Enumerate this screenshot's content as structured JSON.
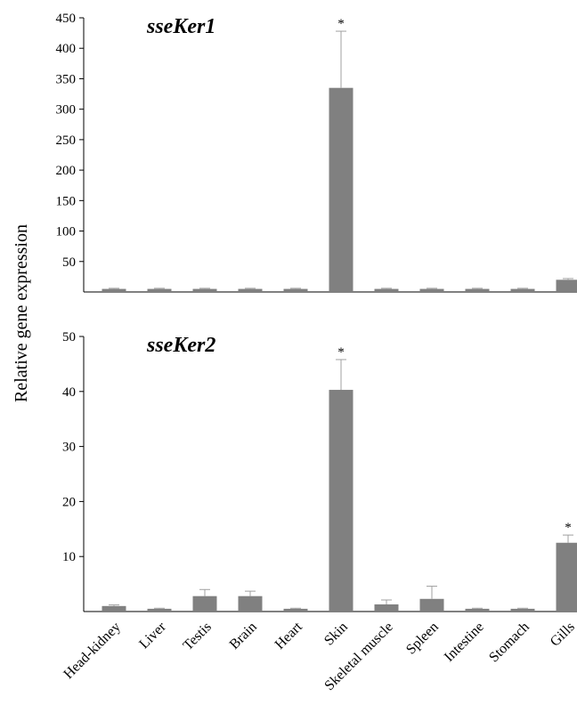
{
  "chart_data": {
    "type": "bar",
    "ylabel": "Relative gene expression",
    "categories": [
      "Head-kidney",
      "Liver",
      "Testis",
      "Brain",
      "Heart",
      "Skin",
      "Skeletal muscle",
      "Spleen",
      "Intestine",
      "Stomach",
      "Gills"
    ],
    "bar_color": "#808080",
    "panels": [
      {
        "title": "sseKer1",
        "ylim": [
          0,
          450
        ],
        "yticks": [
          50,
          100,
          150,
          200,
          250,
          300,
          350,
          400,
          450
        ],
        "values": [
          5,
          5,
          5,
          5,
          5,
          335,
          5,
          5,
          5,
          5,
          20
        ],
        "errors": [
          1,
          1,
          1,
          1,
          1,
          93,
          1,
          1,
          1,
          1,
          2
        ],
        "significance": [
          "",
          "",
          "",
          "",
          "",
          "*",
          "",
          "",
          "",
          "",
          ""
        ]
      },
      {
        "title": "sseKer2",
        "ylim": [
          0,
          50
        ],
        "yticks": [
          10,
          20,
          30,
          40,
          50
        ],
        "values": [
          1.0,
          0.5,
          2.8,
          2.8,
          0.5,
          40.3,
          1.3,
          2.3,
          0.5,
          0.5,
          12.5
        ],
        "errors": [
          0.2,
          0.1,
          1.2,
          0.9,
          0.1,
          5.5,
          0.8,
          2.3,
          0.1,
          0.1,
          1.4
        ],
        "significance": [
          "",
          "",
          "",
          "",
          "",
          "*",
          "",
          "",
          "",
          "",
          "*"
        ]
      }
    ]
  }
}
